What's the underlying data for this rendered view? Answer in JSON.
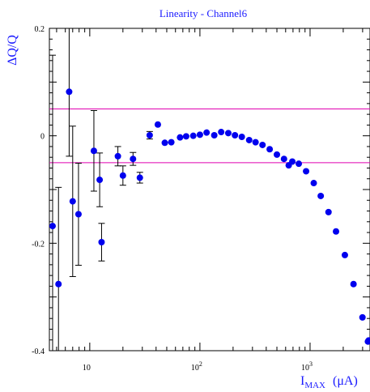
{
  "chart_data": {
    "type": "scatter",
    "title": "Linearity - Channel6",
    "ylabel": "ΔQ/Q",
    "xlabel": {
      "main": "I",
      "sub": "MAX",
      "unit": "(μA)"
    },
    "x_scale": "log",
    "xlim": [
      4.3,
      3500
    ],
    "ylim": [
      -0.4,
      0.2
    ],
    "y_ticks": [
      0.2,
      0,
      -0.2,
      -0.4
    ],
    "y_tick_labels": [
      "0.2",
      "0",
      "-0.2",
      "-0.4"
    ],
    "x_ticks": [
      {
        "base": "10",
        "exp": "",
        "value": 10
      },
      {
        "base": "10",
        "exp": "2",
        "value": 100
      },
      {
        "base": "10",
        "exp": "3",
        "value": 1000
      }
    ],
    "reference_lines": [
      0.05,
      -0.05
    ],
    "colors": {
      "points": "#0000ee",
      "reference_lines": "#e000b0",
      "text": "#1a1aff",
      "error_bars": "#000000"
    },
    "points": [
      {
        "x": 4.6,
        "y": -0.168,
        "err": 0.318
      },
      {
        "x": 5.2,
        "y": -0.276,
        "err": 0.18
      },
      {
        "x": 6.5,
        "y": 0.082,
        "err": 0.12
      },
      {
        "x": 7.0,
        "y": -0.122,
        "err": 0.14
      },
      {
        "x": 7.9,
        "y": -0.146,
        "err": 0.095
      },
      {
        "x": 10.9,
        "y": -0.028,
        "err": 0.075
      },
      {
        "x": 12.3,
        "y": -0.082,
        "err": 0.05
      },
      {
        "x": 12.8,
        "y": -0.198,
        "err": 0.035
      },
      {
        "x": 18.0,
        "y": -0.038,
        "err": 0.018
      },
      {
        "x": 20.0,
        "y": -0.074,
        "err": 0.018
      },
      {
        "x": 24.7,
        "y": -0.043,
        "err": 0.012
      },
      {
        "x": 28.5,
        "y": -0.078,
        "err": 0.01
      },
      {
        "x": 35.0,
        "y": 0.001,
        "err": 0.007
      },
      {
        "x": 41.5,
        "y": 0.021
      },
      {
        "x": 48.0,
        "y": -0.013
      },
      {
        "x": 55.0,
        "y": -0.012
      },
      {
        "x": 66.0,
        "y": -0.003
      },
      {
        "x": 75.0,
        "y": -0.001
      },
      {
        "x": 87.0,
        "y": 0.0
      },
      {
        "x": 100.0,
        "y": 0.002
      },
      {
        "x": 115.0,
        "y": 0.006
      },
      {
        "x": 135.0,
        "y": 0.001
      },
      {
        "x": 156.0,
        "y": 0.007
      },
      {
        "x": 181.0,
        "y": 0.005
      },
      {
        "x": 208.0,
        "y": 0.001
      },
      {
        "x": 240.0,
        "y": -0.002
      },
      {
        "x": 280.0,
        "y": -0.008
      },
      {
        "x": 320.0,
        "y": -0.012
      },
      {
        "x": 370.0,
        "y": -0.017
      },
      {
        "x": 430.0,
        "y": -0.025
      },
      {
        "x": 500.0,
        "y": -0.035
      },
      {
        "x": 580.0,
        "y": -0.043
      },
      {
        "x": 640.0,
        "y": -0.055
      },
      {
        "x": 690.0,
        "y": -0.048
      },
      {
        "x": 790.0,
        "y": -0.052
      },
      {
        "x": 920.0,
        "y": -0.066
      },
      {
        "x": 1080.0,
        "y": -0.088
      },
      {
        "x": 1250.0,
        "y": -0.112
      },
      {
        "x": 1470.0,
        "y": -0.142
      },
      {
        "x": 1720.0,
        "y": -0.178
      },
      {
        "x": 2070.0,
        "y": -0.222
      },
      {
        "x": 2480.0,
        "y": -0.276
      },
      {
        "x": 2990.0,
        "y": -0.338
      },
      {
        "x": 3350.0,
        "y": -0.383
      },
      {
        "x": 3400.0,
        "y": -0.381
      }
    ]
  }
}
